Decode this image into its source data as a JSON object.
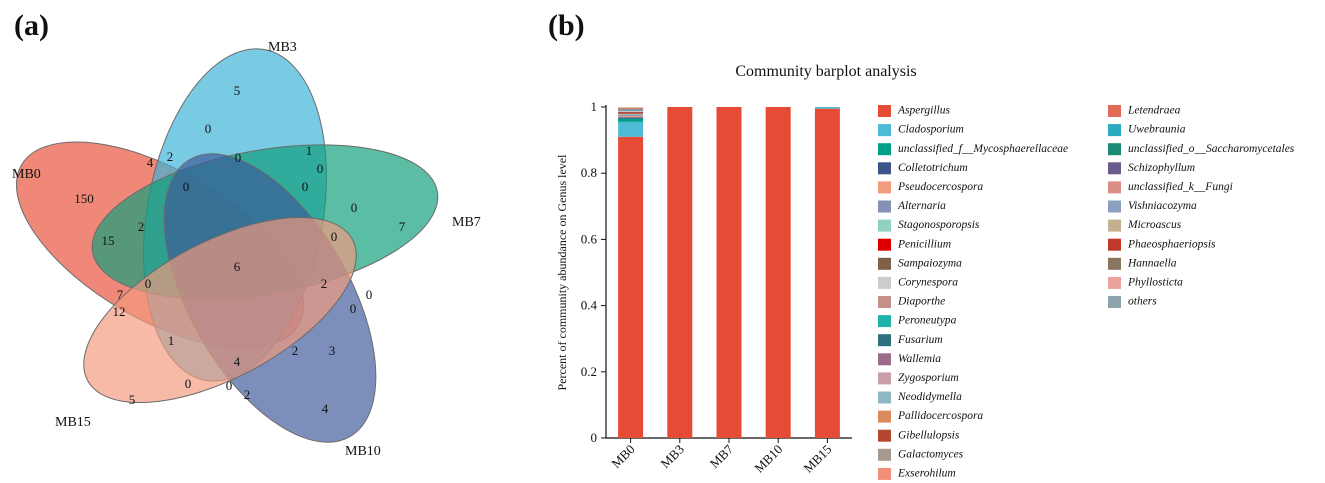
{
  "panel_a": {
    "label": "(a)",
    "venn": {
      "sets": [
        {
          "name": "MB0",
          "color": "#e8503a"
        },
        {
          "name": "MB3",
          "color": "#3ab3d6"
        },
        {
          "name": "MB7",
          "color": "#0f9e7b"
        },
        {
          "name": "MB10",
          "color": "#3c5a9a"
        },
        {
          "name": "MB15",
          "color": "#f39a7d"
        }
      ],
      "counts": [
        {
          "region": "MB0 only",
          "value": "150"
        },
        {
          "region": "MB3 only",
          "value": "5"
        },
        {
          "region": "MB7 only",
          "value": "7"
        },
        {
          "region": "MB10 only",
          "value": "4"
        },
        {
          "region": "MB15 only",
          "value": "5"
        },
        {
          "region": "all",
          "value": "6"
        },
        {
          "region": "r1",
          "value": "0"
        },
        {
          "region": "r2",
          "value": "4"
        },
        {
          "region": "r3",
          "value": "2"
        },
        {
          "region": "r4",
          "value": "0"
        },
        {
          "region": "r5",
          "value": "1"
        },
        {
          "region": "r6",
          "value": "0"
        },
        {
          "region": "r7",
          "value": "0"
        },
        {
          "region": "r8",
          "value": "0"
        },
        {
          "region": "r9",
          "value": "0"
        },
        {
          "region": "r10",
          "value": "15"
        },
        {
          "region": "r11",
          "value": "2"
        },
        {
          "region": "r12",
          "value": "0"
        },
        {
          "region": "r13",
          "value": "2"
        },
        {
          "region": "r14",
          "value": "0"
        },
        {
          "region": "r15",
          "value": "0"
        },
        {
          "region": "r16",
          "value": "7"
        },
        {
          "region": "r17",
          "value": "12"
        },
        {
          "region": "r18",
          "value": "0"
        },
        {
          "region": "r19",
          "value": "1"
        },
        {
          "region": "r20",
          "value": "4"
        },
        {
          "region": "r21",
          "value": "2"
        },
        {
          "region": "r22",
          "value": "3"
        },
        {
          "region": "r23",
          "value": "0"
        },
        {
          "region": "r24",
          "value": "0"
        },
        {
          "region": "r25",
          "value": "2"
        }
      ]
    }
  },
  "panel_b": {
    "label": "(b)",
    "chart_data": {
      "type": "bar",
      "stacked": true,
      "title": "Community barplot analysis",
      "ylabel": "Percent of community abundance on Genus level",
      "xlabel": "",
      "ylim": [
        0,
        1
      ],
      "yticks": [
        "0",
        "0.2",
        "0.4",
        "0.6",
        "0.8",
        "1"
      ],
      "categories": [
        "MB0",
        "MB3",
        "MB7",
        "MB10",
        "MB15"
      ],
      "series": [
        {
          "name": "Aspergillus",
          "color": "#e64b35",
          "values": [
            0.91,
            1.0,
            1.0,
            1.0,
            0.995
          ]
        },
        {
          "name": "Cladosporium",
          "color": "#4dbbd5",
          "values": [
            0.045,
            0,
            0,
            0,
            0.005
          ]
        },
        {
          "name": "unclassified_f__Mycosphaerellaceae",
          "color": "#00a087",
          "values": [
            0.01,
            0,
            0,
            0,
            0
          ]
        },
        {
          "name": "Colletotrichum",
          "color": "#3c5488",
          "values": [
            0.004,
            0,
            0,
            0,
            0
          ]
        },
        {
          "name": "Pseudocercospora",
          "color": "#f39b7f",
          "values": [
            0.004,
            0,
            0,
            0,
            0
          ]
        },
        {
          "name": "Alternaria",
          "color": "#8491b4",
          "values": [
            0.004,
            0,
            0,
            0,
            0
          ]
        },
        {
          "name": "Stagonosporopsis",
          "color": "#91d1c2",
          "values": [
            0.003,
            0,
            0,
            0,
            0
          ]
        },
        {
          "name": "Penicillium",
          "color": "#dc0000",
          "values": [
            0.003,
            0,
            0,
            0,
            0
          ]
        },
        {
          "name": "Sampaiozyma",
          "color": "#7e6148",
          "values": [
            0.002,
            0,
            0,
            0,
            0
          ]
        },
        {
          "name": "Corynespora",
          "color": "#cccccc",
          "values": [
            0.002,
            0,
            0,
            0,
            0
          ]
        },
        {
          "name": "Diaporthe",
          "color": "#c3908a",
          "values": [
            0.002,
            0,
            0,
            0,
            0
          ]
        },
        {
          "name": "Peroneutypa",
          "color": "#20b2aa",
          "values": [
            0.002,
            0,
            0,
            0,
            0
          ]
        },
        {
          "name": "Fusarium",
          "color": "#2e6f80",
          "values": [
            0.001,
            0,
            0,
            0,
            0
          ]
        },
        {
          "name": "Wallemia",
          "color": "#9b6b8a",
          "values": [
            0.001,
            0,
            0,
            0,
            0
          ]
        },
        {
          "name": "Zygosporium",
          "color": "#c9a0a8",
          "values": [
            0.001,
            0,
            0,
            0,
            0
          ]
        },
        {
          "name": "Neodidymella",
          "color": "#8fb7c2",
          "values": [
            0.001,
            0,
            0,
            0,
            0
          ]
        },
        {
          "name": "Pallidocercospora",
          "color": "#d98a5f",
          "values": [
            0.001,
            0,
            0,
            0,
            0
          ]
        },
        {
          "name": "Gibellulopsis",
          "color": "#b5472f",
          "values": [
            0.001,
            0,
            0,
            0,
            0
          ]
        },
        {
          "name": "Galactomyces",
          "color": "#a89a8e",
          "values": [
            0.001,
            0,
            0,
            0,
            0
          ]
        },
        {
          "name": "Exserohilum",
          "color": "#f0907a",
          "values": [
            0.001,
            0,
            0,
            0,
            0
          ]
        },
        {
          "name": "Letendraea",
          "color": "#e06a55",
          "values": [
            0,
            0,
            0,
            0,
            0
          ]
        },
        {
          "name": "Uwebraunia",
          "color": "#2aabbf",
          "values": [
            0,
            0,
            0,
            0,
            0
          ]
        },
        {
          "name": "unclassified_o__Saccharomycetales",
          "color": "#1a8a76",
          "values": [
            0,
            0,
            0,
            0,
            0
          ]
        },
        {
          "name": "Schizophyllum",
          "color": "#6a5a8e",
          "values": [
            0,
            0,
            0,
            0,
            0
          ]
        },
        {
          "name": "unclassified_k__Fungi",
          "color": "#d98e86",
          "values": [
            0,
            0,
            0,
            0,
            0
          ]
        },
        {
          "name": "Vishniacozyma",
          "color": "#8ea0bf",
          "values": [
            0,
            0,
            0,
            0,
            0
          ]
        },
        {
          "name": "Microascus",
          "color": "#c2b08e",
          "values": [
            0,
            0,
            0,
            0,
            0
          ]
        },
        {
          "name": "Phaeosphaeriopsis",
          "color": "#c0392b",
          "values": [
            0,
            0,
            0,
            0,
            0
          ]
        },
        {
          "name": "Hannaella",
          "color": "#8a7560",
          "values": [
            0,
            0,
            0,
            0,
            0
          ]
        },
        {
          "name": "Phyllosticta",
          "color": "#e8a49a",
          "values": [
            0,
            0,
            0,
            0,
            0
          ]
        },
        {
          "name": "others",
          "color": "#8fa3ad",
          "values": [
            0,
            0,
            0,
            0,
            0
          ]
        }
      ]
    }
  }
}
